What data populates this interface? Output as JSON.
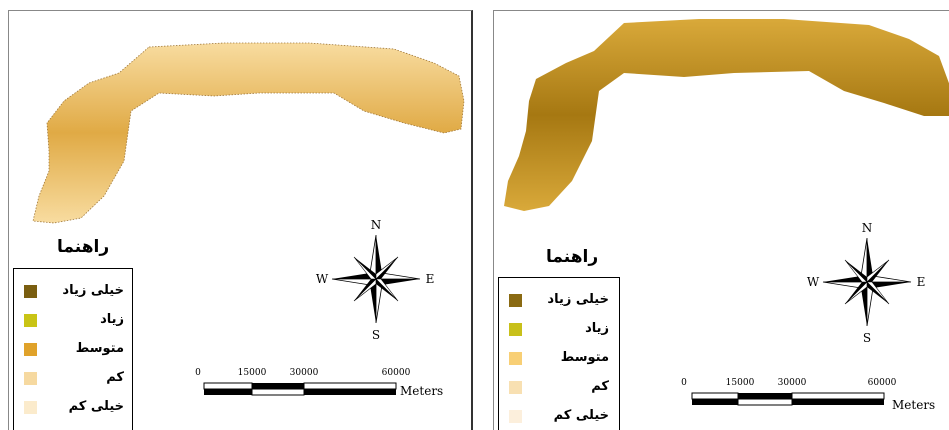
{
  "maps": [
    {
      "id": "left",
      "legend": {
        "title": "راهنما",
        "items": [
          {
            "label": "خیلی زیاد",
            "color": "#7a5e10"
          },
          {
            "label": "زیاد",
            "color": "#c9c415"
          },
          {
            "label": "متوسط",
            "color": "#e0a22a"
          },
          {
            "label": "کم",
            "color": "#f6d9a0"
          },
          {
            "label": "خیلی کم",
            "color": "#fbebcc"
          }
        ]
      },
      "compass": {
        "n": "N",
        "s": "S",
        "e": "E",
        "w": "W"
      },
      "scale_bar": {
        "ticks": [
          "0",
          "15000",
          "30000",
          "60000"
        ],
        "unit": "Meters"
      },
      "region_fill_light": "#f8dca0",
      "region_fill_dark": "#e0aa45"
    },
    {
      "id": "right",
      "legend": {
        "title": "راهنما",
        "items": [
          {
            "label": "خیلی زیاد",
            "color": "#8a6a12"
          },
          {
            "label": "زیاد",
            "color": "#c8c01a"
          },
          {
            "label": "متوسط",
            "color": "#f8cf75"
          },
          {
            "label": "کم",
            "color": "#f8e0b2"
          },
          {
            "label": "خیلی کم",
            "color": "#fcefdc"
          }
        ]
      },
      "compass": {
        "n": "N",
        "s": "S",
        "e": "E",
        "w": "W"
      },
      "scale_bar": {
        "ticks": [
          "0",
          "15000",
          "30000",
          "60000"
        ],
        "unit": "Meters"
      },
      "region_fill_light": "#d9a93a",
      "region_fill_dark": "#a67812"
    }
  ]
}
